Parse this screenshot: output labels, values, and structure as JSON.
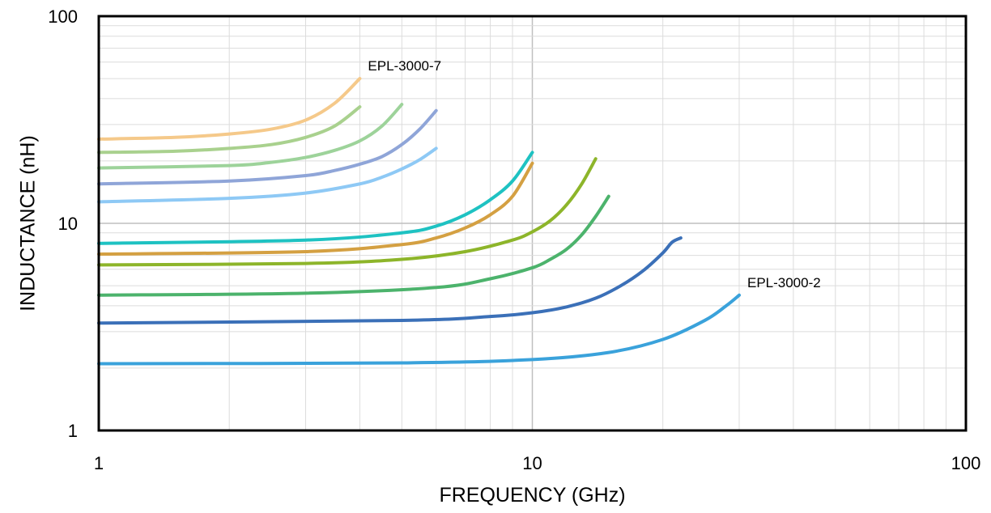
{
  "chart_data": {
    "type": "line",
    "title": "",
    "xlabel": "FREQUENCY (GHz)",
    "ylabel": "INDUCTANCE (nH)",
    "x_scale": "log",
    "y_scale": "log",
    "xlim": [
      1,
      100
    ],
    "ylim": [
      1,
      100
    ],
    "x_ticks": [
      "1",
      "10",
      "100"
    ],
    "y_ticks": [
      "1",
      "10",
      "100"
    ],
    "grid": true,
    "legend": "none",
    "annotations": [
      {
        "text": "EPL-3000-7"
      },
      {
        "text": "EPL-3000-2"
      }
    ],
    "series": [
      {
        "color": "#f5c98a",
        "x": [
          1,
          1.5,
          2,
          2.5,
          3,
          3.5,
          4
        ],
        "y": [
          25.5,
          26,
          27,
          28.5,
          31.5,
          38,
          50
        ]
      },
      {
        "color": "#a9d18e",
        "x": [
          1,
          1.5,
          2,
          2.5,
          3,
          3.5,
          4
        ],
        "y": [
          22,
          22.3,
          23,
          24,
          26,
          29.5,
          36.5
        ]
      },
      {
        "color": "#9dd39a",
        "x": [
          1,
          2,
          2.5,
          3,
          3.5,
          4,
          4.5,
          5
        ],
        "y": [
          18.5,
          19,
          19.7,
          20.8,
          22.5,
          25,
          29.5,
          37.5
        ]
      },
      {
        "color": "#8fa5d8",
        "x": [
          1,
          2,
          3,
          3.5,
          4,
          4.5,
          5,
          5.5,
          6
        ],
        "y": [
          15.5,
          16,
          17,
          18,
          19.3,
          21,
          24,
          28.5,
          35
        ]
      },
      {
        "color": "#8ec9f5",
        "x": [
          1,
          2,
          3,
          4,
          4.5,
          5,
          5.5,
          6
        ],
        "y": [
          12.7,
          13.2,
          14,
          15.5,
          16.7,
          18.3,
          20.3,
          23
        ]
      },
      {
        "color": "#1ec2c2",
        "x": [
          1,
          3,
          5,
          6,
          7,
          8,
          9,
          10
        ],
        "y": [
          8,
          8.3,
          9,
          9.7,
          11,
          13,
          16,
          22
        ]
      },
      {
        "color": "#d4a042",
        "x": [
          1,
          3,
          5,
          6,
          7,
          8,
          9,
          10
        ],
        "y": [
          7.1,
          7.3,
          7.9,
          8.5,
          9.5,
          11,
          13.5,
          19.5
        ]
      },
      {
        "color": "#8db52a",
        "x": [
          1,
          3,
          5,
          7,
          9,
          10,
          11,
          12,
          13,
          14
        ],
        "y": [
          6.3,
          6.4,
          6.7,
          7.3,
          8.3,
          9.1,
          10.3,
          12.3,
          15.5,
          20.5
        ]
      },
      {
        "color": "#4cb36c",
        "x": [
          1,
          3,
          6,
          8,
          10,
          11,
          12,
          13,
          14,
          15
        ],
        "y": [
          4.5,
          4.6,
          4.9,
          5.4,
          6.1,
          6.7,
          7.5,
          8.8,
          10.8,
          13.5
        ]
      },
      {
        "color": "#3b70b8",
        "x": [
          1,
          5,
          8,
          10,
          12,
          14,
          16,
          18,
          20,
          21,
          22
        ],
        "y": [
          3.3,
          3.4,
          3.55,
          3.7,
          3.95,
          4.35,
          5,
          5.9,
          7.2,
          8.1,
          8.5
        ]
      },
      {
        "color": "#3aa2db",
        "x": [
          1,
          5,
          10,
          15,
          20,
          25,
          28,
          30
        ],
        "y": [
          2.1,
          2.12,
          2.2,
          2.38,
          2.75,
          3.4,
          4,
          4.5
        ]
      }
    ]
  }
}
